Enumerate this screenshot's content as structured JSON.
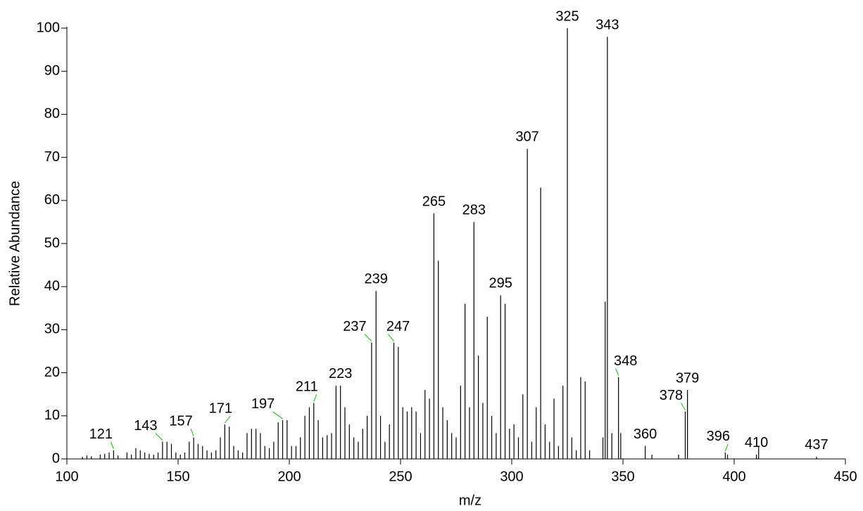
{
  "chart_data": {
    "type": "stick",
    "x_label": "m/z",
    "y_label": "Relative Abundance",
    "x": [
      107,
      109,
      111,
      115,
      117,
      119,
      121,
      123,
      127,
      129,
      131,
      133,
      135,
      137,
      139,
      141,
      143,
      145,
      147,
      149,
      151,
      153,
      155,
      157,
      159,
      161,
      163,
      165,
      167,
      169,
      171,
      173,
      175,
      177,
      179,
      181,
      183,
      185,
      187,
      189,
      191,
      193,
      195,
      197,
      199,
      201,
      203,
      205,
      207,
      209,
      211,
      213,
      215,
      217,
      219,
      221,
      223,
      225,
      227,
      229,
      231,
      233,
      235,
      237,
      239,
      241,
      243,
      245,
      247,
      249,
      251,
      253,
      255,
      257,
      259,
      261,
      263,
      265,
      267,
      269,
      271,
      273,
      275,
      277,
      279,
      281,
      283,
      285,
      287,
      289,
      291,
      293,
      295,
      297,
      299,
      301,
      303,
      305,
      307,
      309,
      311,
      313,
      315,
      317,
      319,
      321,
      323,
      325,
      327,
      329,
      331,
      333,
      335,
      341,
      342,
      343,
      345,
      348,
      349,
      360,
      363,
      375,
      378,
      379,
      396,
      397,
      410,
      411,
      437
    ],
    "values": [
      0.5,
      0.8,
      0.6,
      1,
      1.2,
      1.5,
      2,
      0.8,
      1.5,
      1,
      2.5,
      2,
      1.5,
      1.2,
      1,
      1.5,
      4,
      4,
      3.5,
      1.5,
      1,
      1.5,
      4,
      5,
      3.5,
      3,
      2,
      1.5,
      2,
      5,
      8,
      7.5,
      3,
      2,
      1.5,
      6,
      7,
      7,
      6,
      3,
      2.5,
      4,
      8.5,
      9,
      9,
      3,
      3,
      5,
      10,
      12,
      13,
      9,
      5,
      5.5,
      6,
      17,
      17,
      12,
      8,
      5,
      4,
      7,
      10,
      27,
      39,
      10,
      4,
      8,
      27,
      26,
      12,
      11,
      12,
      11,
      6,
      16,
      14,
      57,
      46,
      12,
      9,
      6,
      5,
      17,
      36,
      12,
      55,
      24,
      13,
      33,
      10,
      6,
      38,
      36,
      7,
      8,
      5,
      15,
      72,
      4,
      12,
      63,
      8,
      4,
      14,
      3,
      17,
      100,
      5,
      2,
      19,
      18,
      2,
      5,
      36.5,
      98,
      6,
      19,
      6,
      3,
      1,
      1,
      11,
      16,
      1.5,
      1,
      1,
      3,
      0.5
    ],
    "annotations": [
      121,
      143,
      157,
      171,
      197,
      211,
      223,
      237,
      239,
      247,
      265,
      283,
      295,
      307,
      325,
      343,
      348,
      360,
      378,
      379,
      396,
      410,
      437
    ],
    "color": "#000000",
    "leader_color": "#22aa22",
    "xlim": [
      100,
      450
    ],
    "xticks": [
      100,
      150,
      200,
      250,
      300,
      350,
      400,
      450
    ],
    "ylim": [
      0,
      100
    ],
    "yticks": [
      0,
      10,
      20,
      30,
      40,
      50,
      60,
      70,
      80,
      90,
      100
    ]
  }
}
